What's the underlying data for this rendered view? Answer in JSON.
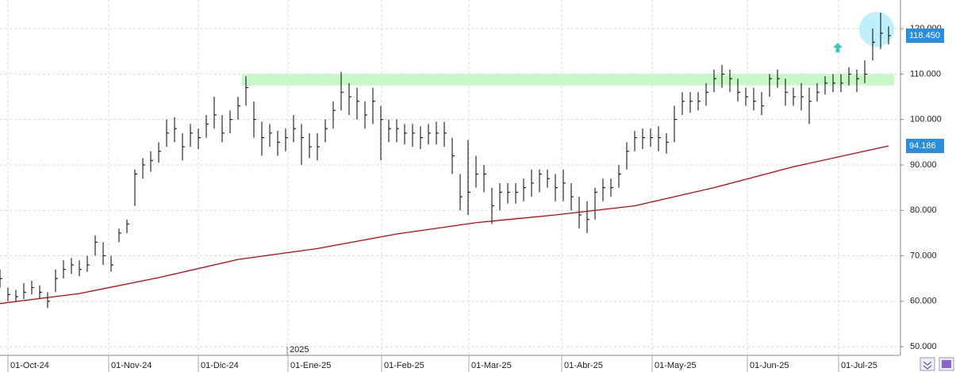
{
  "chart_data": {
    "type": "ohlc",
    "x": [
      0,
      1,
      2,
      3,
      4,
      5,
      6,
      7,
      8,
      9,
      10,
      11,
      12,
      13,
      14,
      15,
      16,
      17,
      18,
      19,
      20,
      21,
      22,
      23,
      24,
      25,
      26,
      27,
      28,
      29,
      30,
      31,
      32,
      33,
      34,
      35,
      36,
      37,
      38,
      39,
      40,
      41,
      42,
      43,
      44,
      45,
      46,
      47,
      48,
      49,
      50,
      51,
      52,
      53,
      54,
      55,
      56,
      57,
      58,
      59,
      60,
      61,
      62,
      63,
      64,
      65,
      66,
      67,
      68,
      69,
      70,
      71,
      72,
      73,
      74,
      75,
      76,
      77,
      78,
      79,
      80,
      81,
      82,
      83,
      84,
      85,
      86,
      87,
      88,
      89,
      90,
      91,
      92,
      93,
      94,
      95,
      96,
      97,
      98,
      99,
      100,
      101,
      102,
      103,
      104,
      105,
      106,
      107,
      108,
      109,
      110,
      111,
      112
    ],
    "high": [
      67,
      63,
      62.5,
      64,
      64.5,
      63.5,
      62,
      67,
      69,
      69.5,
      69,
      70,
      74.5,
      73,
      70,
      76,
      78,
      89,
      91.5,
      93,
      95,
      100,
      100.5,
      97,
      99,
      98,
      101,
      105,
      101,
      102,
      105,
      109.5,
      104,
      99.5,
      99,
      97.5,
      98,
      101,
      99,
      97,
      97,
      100,
      104,
      110.5,
      108,
      107,
      104,
      107,
      103,
      100,
      100,
      99,
      99,
      98.5,
      99,
      99.5,
      99.5,
      96,
      88,
      95.5,
      92,
      90,
      85,
      86,
      86,
      86,
      87,
      89,
      89,
      89,
      88,
      89,
      86,
      83,
      82,
      85,
      87,
      87,
      90,
      95,
      97.5,
      98,
      98,
      98.5,
      97,
      103,
      106,
      106,
      106,
      108,
      111,
      112,
      111,
      109,
      107,
      107,
      106,
      110,
      111,
      109,
      107,
      108,
      107,
      108,
      109.5,
      110,
      110,
      111.5,
      111,
      113,
      120,
      123.5,
      120.5
    ],
    "low": [
      63,
      60,
      60,
      60.5,
      61.5,
      60.5,
      58.5,
      62,
      65,
      66,
      65.5,
      66.5,
      70,
      68,
      66.5,
      73,
      75,
      81,
      87,
      88.5,
      90.5,
      94,
      95,
      91,
      94,
      93.5,
      96,
      98,
      95,
      97,
      100,
      103,
      96,
      92,
      94,
      92,
      93,
      95,
      90,
      91.5,
      91,
      95,
      98,
      102,
      101,
      100,
      98,
      99,
      91,
      95,
      95,
      94.5,
      94,
      93.5,
      94.5,
      94.5,
      94,
      88,
      80,
      79,
      85,
      84,
      77,
      80,
      81.5,
      81.5,
      82,
      83,
      84,
      85,
      82,
      82,
      80,
      76,
      75,
      78,
      82,
      83,
      85,
      89,
      93,
      93.5,
      94,
      93,
      92.5,
      95,
      101,
      101.5,
      102,
      103,
      106,
      107,
      106,
      104,
      103,
      102,
      101,
      105,
      107,
      103,
      103,
      102,
      99,
      104,
      105.5,
      106,
      106,
      107.5,
      106,
      108,
      113,
      115.5,
      116.5
    ],
    "close": [
      65,
      61.5,
      61,
      62,
      63,
      62,
      60,
      65,
      67,
      68,
      67,
      68,
      73,
      70,
      68,
      75,
      77,
      88,
      90,
      91,
      93,
      97,
      98,
      94,
      97,
      96,
      99,
      101,
      97,
      100,
      103,
      107,
      100,
      96,
      97,
      95,
      96,
      98,
      96,
      94,
      94,
      98,
      102,
      106,
      105,
      104,
      101,
      104,
      100,
      98,
      98,
      97,
      97,
      96,
      97,
      97,
      97,
      92,
      83,
      84,
      88,
      88,
      81,
      84,
      84,
      84,
      85,
      86,
      88,
      87,
      85,
      86,
      83,
      79,
      78,
      84,
      85,
      85,
      88,
      93,
      96,
      96,
      96,
      96,
      95,
      100,
      104,
      104,
      104,
      106,
      109,
      110,
      109,
      106,
      105,
      104,
      103,
      109,
      109,
      106,
      105,
      105,
      104,
      106,
      108,
      108,
      108,
      110,
      109,
      110,
      117,
      119,
      118.45
    ],
    "close_last_label": "118.450",
    "bar_color": "#000000",
    "moving_average": {
      "color": "#cc0000",
      "x": [
        0,
        10,
        20,
        30,
        40,
        50,
        60,
        70,
        80,
        90,
        100,
        112
      ],
      "values": [
        59.5,
        61.7,
        65.2,
        69.2,
        71.6,
        74.8,
        77.3,
        79,
        81,
        85,
        89.6,
        94.186
      ],
      "last_label": "94.186"
    },
    "resistance_zone": {
      "from": 107.5,
      "to": 110,
      "color": "#c8f7c8"
    },
    "xlim": [
      0,
      113.5
    ],
    "xticks": [
      {
        "value": 1,
        "label": "01-Oct-24"
      },
      {
        "value": 13.7,
        "label": "01-Nov-24"
      },
      {
        "value": 25,
        "label": "01-Dic-24"
      },
      {
        "value": 36.3,
        "label": "01-Ene-25"
      },
      {
        "value": 48.1,
        "label": "01-Feb-25"
      },
      {
        "value": 59.1,
        "label": "01-Mar-25"
      },
      {
        "value": 70.8,
        "label": "01-Abr-25"
      },
      {
        "value": 82.2,
        "label": "01-May-25"
      },
      {
        "value": 94.2,
        "label": "01-Jun-25"
      },
      {
        "value": 105.7,
        "label": "01-Jul-25"
      }
    ],
    "year_label": "2025",
    "ylim": [
      48.1,
      126.3
    ],
    "yticks": [
      {
        "value": 50,
        "label": "50.000"
      },
      {
        "value": 60,
        "label": "60.000"
      },
      {
        "value": 70,
        "label": "70.000"
      },
      {
        "value": 80,
        "label": "80.000"
      },
      {
        "value": 90,
        "label": "90.000"
      },
      {
        "value": 100,
        "label": "100.000"
      },
      {
        "value": 110,
        "label": "110.000"
      },
      {
        "value": 120,
        "label": "120.000"
      }
    ],
    "grid": true
  }
}
